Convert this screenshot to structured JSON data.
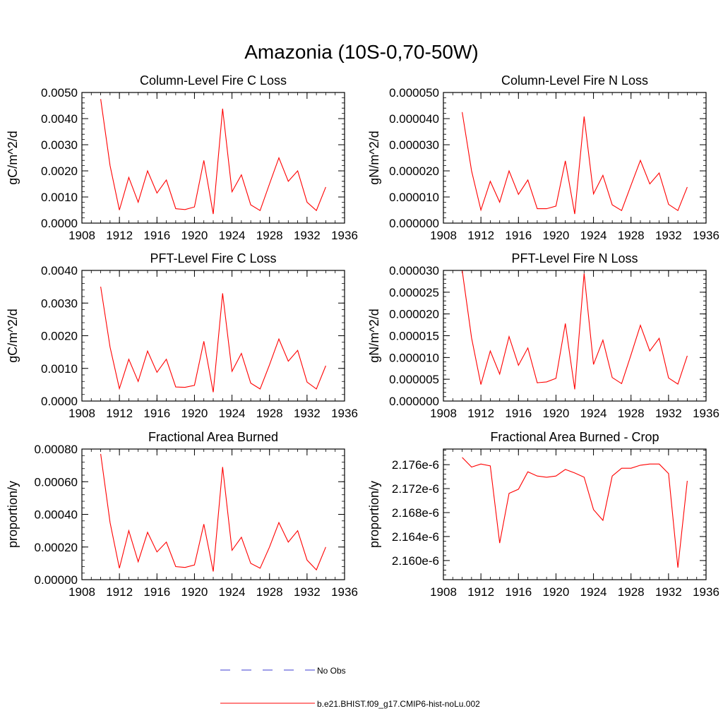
{
  "title": "Amazonia (10S-0,70-50W)",
  "series_color": "#ff0000",
  "obs_color": "#3c3cd2",
  "legend": {
    "obs_label": "No Obs",
    "model_label": "b.e21.BHIST.f09_g17.CMIP6-hist-noLu.002"
  },
  "chart_data": [
    {
      "type": "line",
      "title": "Column-Level Fire C Loss",
      "ylabel": "gC/m^2/d",
      "xlim": [
        1908,
        1936
      ],
      "x_ticks": [
        "1908",
        "1912",
        "1916",
        "1920",
        "1924",
        "1928",
        "1932",
        "1936"
      ],
      "ylim": [
        0,
        0.005
      ],
      "y_ticks": [
        "0.0000",
        "0.0010",
        "0.0020",
        "0.0030",
        "0.0040",
        "0.0050"
      ],
      "x": [
        1910,
        1911,
        1912,
        1913,
        1914,
        1915,
        1916,
        1917,
        1918,
        1919,
        1920,
        1921,
        1922,
        1923,
        1924,
        1925,
        1926,
        1927,
        1928,
        1929,
        1930,
        1931,
        1932,
        1933,
        1934
      ],
      "values": [
        0.00475,
        0.0022,
        0.0005,
        0.00175,
        0.0008,
        0.002,
        0.00115,
        0.00165,
        0.00055,
        0.00052,
        0.00062,
        0.0024,
        0.00035,
        0.00438,
        0.0012,
        0.00185,
        0.0007,
        0.00048,
        0.0015,
        0.0025,
        0.0016,
        0.002,
        0.0008,
        0.00048,
        0.00138
      ]
    },
    {
      "type": "line",
      "title": "Column-Level Fire N Loss",
      "ylabel": "gN/m^2/d",
      "xlim": [
        1908,
        1936
      ],
      "x_ticks": [
        "1908",
        "1912",
        "1916",
        "1920",
        "1924",
        "1928",
        "1932",
        "1936"
      ],
      "ylim": [
        0,
        5e-05
      ],
      "y_ticks": [
        "0.000000",
        "0.000010",
        "0.000020",
        "0.000030",
        "0.000040",
        "0.000050"
      ],
      "x": [
        1910,
        1911,
        1912,
        1913,
        1914,
        1915,
        1916,
        1917,
        1918,
        1919,
        1920,
        1921,
        1922,
        1923,
        1924,
        1925,
        1926,
        1927,
        1928,
        1929,
        1930,
        1931,
        1932,
        1933,
        1934
      ],
      "values": [
        4.25e-05,
        2e-05,
        5e-06,
        1.6e-05,
        8e-06,
        2e-05,
        1.1e-05,
        1.65e-05,
        5.5e-06,
        5.5e-06,
        6.5e-06,
        2.38e-05,
        3.5e-06,
        4.08e-05,
        1.12e-05,
        1.83e-05,
        7e-06,
        4.8e-06,
        1.45e-05,
        2.4e-05,
        1.5e-05,
        1.92e-05,
        7.2e-06,
        4.8e-06,
        1.38e-05
      ]
    },
    {
      "type": "line",
      "title": "PFT-Level Fire C Loss",
      "ylabel": "gC/m^2/d",
      "xlim": [
        1908,
        1936
      ],
      "x_ticks": [
        "1908",
        "1912",
        "1916",
        "1920",
        "1924",
        "1928",
        "1932",
        "1936"
      ],
      "ylim": [
        0,
        0.004
      ],
      "y_ticks": [
        "0.0000",
        "0.0010",
        "0.0020",
        "0.0030",
        "0.0040"
      ],
      "x": [
        1910,
        1911,
        1912,
        1913,
        1914,
        1915,
        1916,
        1917,
        1918,
        1919,
        1920,
        1921,
        1922,
        1923,
        1924,
        1925,
        1926,
        1927,
        1928,
        1929,
        1930,
        1931,
        1932,
        1933,
        1934
      ],
      "values": [
        0.0035,
        0.00165,
        0.00038,
        0.00128,
        0.0006,
        0.00153,
        0.00088,
        0.00128,
        0.00043,
        0.00042,
        0.00048,
        0.00183,
        0.00027,
        0.0033,
        0.00091,
        0.00146,
        0.00055,
        0.00037,
        0.00111,
        0.0019,
        0.00122,
        0.00155,
        0.00058,
        0.00037,
        0.00108
      ]
    },
    {
      "type": "line",
      "title": "PFT-Level Fire N Loss",
      "ylabel": "gN/m^2/d",
      "xlim": [
        1908,
        1936
      ],
      "x_ticks": [
        "1908",
        "1912",
        "1916",
        "1920",
        "1924",
        "1928",
        "1932",
        "1936"
      ],
      "ylim": [
        0,
        3e-05
      ],
      "y_ticks": [
        "0.000000",
        "0.000005",
        "0.000010",
        "0.000015",
        "0.000020",
        "0.000025",
        "0.000030"
      ],
      "x": [
        1910,
        1911,
        1912,
        1913,
        1914,
        1915,
        1916,
        1917,
        1918,
        1919,
        1920,
        1921,
        1922,
        1923,
        1924,
        1925,
        1926,
        1927,
        1928,
        1929,
        1930,
        1931,
        1932,
        1933,
        1934
      ],
      "values": [
        3e-05,
        1.45e-05,
        3.8e-06,
        1.15e-05,
        6.2e-06,
        1.48e-05,
        8.2e-06,
        1.22e-05,
        4.2e-06,
        4.4e-06,
        5.2e-06,
        1.78e-05,
        2.7e-06,
        2.93e-05,
        8.4e-06,
        1.4e-05,
        5.4e-06,
        4e-06,
        1.06e-05,
        1.74e-05,
        1.15e-05,
        1.44e-05,
        5.3e-06,
        3.9e-06,
        1.04e-05
      ]
    },
    {
      "type": "line",
      "title": "Fractional Area Burned",
      "ylabel": "proportion/y",
      "xlim": [
        1908,
        1936
      ],
      "x_ticks": [
        "1908",
        "1912",
        "1916",
        "1920",
        "1924",
        "1928",
        "1932",
        "1936"
      ],
      "ylim": [
        0,
        0.0008
      ],
      "y_ticks": [
        "0.00000",
        "0.00020",
        "0.00040",
        "0.00060",
        "0.00080"
      ],
      "x": [
        1910,
        1911,
        1912,
        1913,
        1914,
        1915,
        1916,
        1917,
        1918,
        1919,
        1920,
        1921,
        1922,
        1923,
        1924,
        1925,
        1926,
        1927,
        1928,
        1929,
        1930,
        1931,
        1932,
        1933,
        1934
      ],
      "values": [
        0.00077,
        0.00035,
        7e-05,
        0.0003,
        0.00011,
        0.00029,
        0.00017,
        0.00023,
        8e-05,
        7.5e-05,
        9e-05,
        0.00034,
        5e-05,
        0.00069,
        0.00018,
        0.00026,
        0.0001,
        7e-05,
        0.0002,
        0.00035,
        0.00023,
        0.0003,
        0.00012,
        6e-05,
        0.0002
      ]
    },
    {
      "type": "line",
      "title": "Fractional Area Burned - Crop",
      "ylabel": "proportion/y",
      "xlim": [
        1908,
        1936
      ],
      "x_ticks": [
        "1908",
        "1912",
        "1916",
        "1920",
        "1924",
        "1928",
        "1932",
        "1936"
      ],
      "ylim": [
        2.1568e-06,
        2.1786e-06
      ],
      "y_ticks": [
        "2.160e-6",
        "2.164e-6",
        "2.168e-6",
        "2.172e-6",
        "2.176e-6"
      ],
      "y_tick_values": [
        2.16e-06,
        2.164e-06,
        2.168e-06,
        2.172e-06,
        2.176e-06
      ],
      "x": [
        1910,
        1911,
        1912,
        1913,
        1914,
        1915,
        1916,
        1917,
        1918,
        1919,
        1920,
        1921,
        1922,
        1923,
        1924,
        1925,
        1926,
        1927,
        1928,
        1929,
        1930,
        1931,
        1932,
        1933,
        1934
      ],
      "values": [
        2.1772e-06,
        2.1756e-06,
        2.1761e-06,
        2.1758e-06,
        2.1629e-06,
        2.1712e-06,
        2.1719e-06,
        2.1748e-06,
        2.1741e-06,
        2.1739e-06,
        2.1741e-06,
        2.1752e-06,
        2.1746e-06,
        2.1739e-06,
        2.1685e-06,
        2.1667e-06,
        2.1741e-06,
        2.1754e-06,
        2.1754e-06,
        2.1759e-06,
        2.1761e-06,
        2.1761e-06,
        2.1745e-06,
        2.1588e-06,
        2.1733e-06
      ]
    }
  ]
}
